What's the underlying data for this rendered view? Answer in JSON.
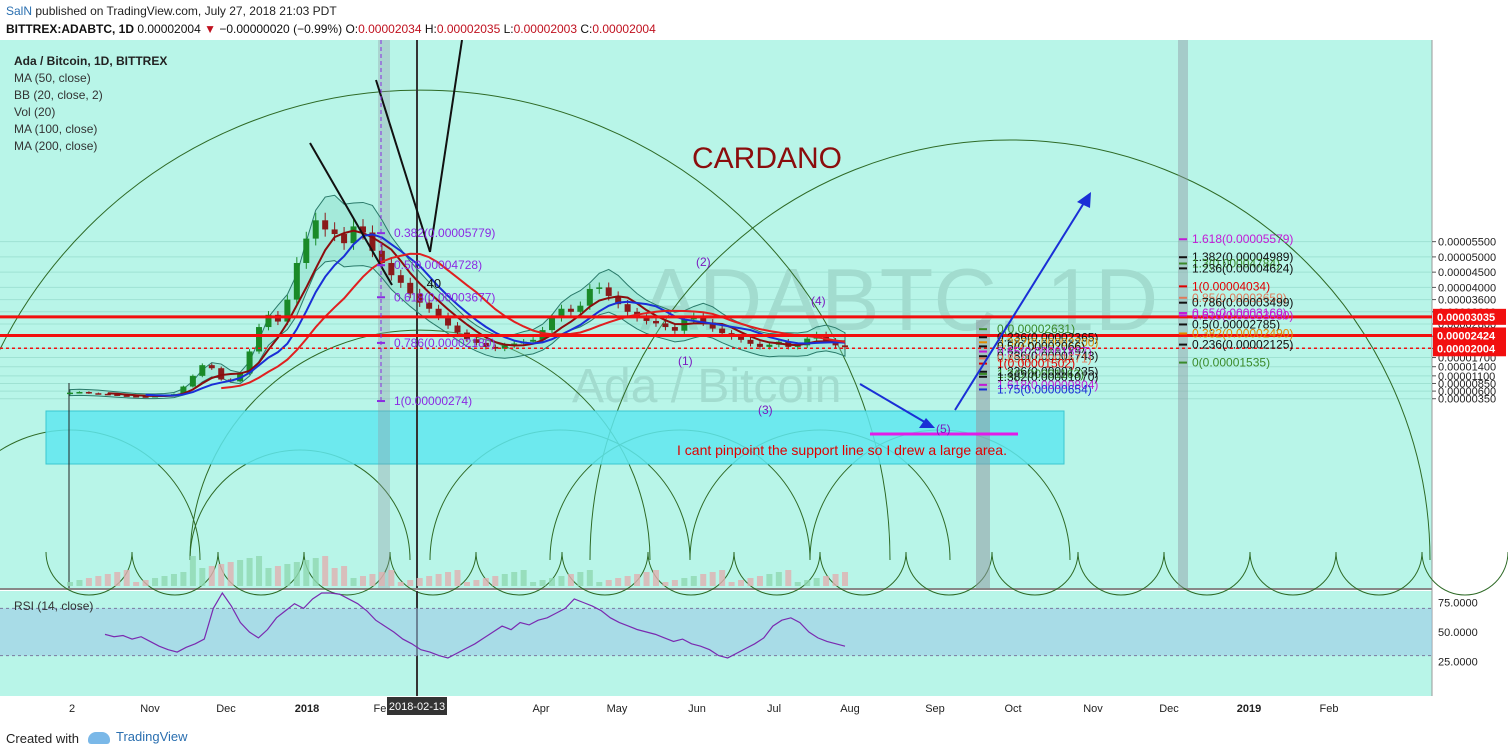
{
  "header": {
    "user": "SalN",
    "published_text": "published on TradingView.com, July 27, 2018 21:03 PDT",
    "symbol": "BITTREX:ADABTC, 1D",
    "last": "0.00002004",
    "change": "−0.00000020 (−0.99%)",
    "o_label": "O:",
    "o": "0.00002034",
    "h_label": "H:",
    "h": "0.00002035",
    "l_label": "L:",
    "l": "0.00002003",
    "c_label": "C:",
    "c": "0.00002004"
  },
  "legend": {
    "title": "Ada / Bitcoin, 1D, BITTREX",
    "items": [
      "MA (50, close)",
      "BB (20, close, 2)",
      "Vol (20)",
      "MA (100, close)",
      "MA (200, close)"
    ]
  },
  "watermark": {
    "line1": "ADABTC, 1D",
    "line2": "Ada / Bitcoin"
  },
  "annotations": {
    "title": "CARDANO",
    "note": "I cant pinpoint the support line so I drew a large area.",
    "wave1": "(1)",
    "wave2": "(2)",
    "wave3": "(3)",
    "wave4": "(4)",
    "wave5": "(5)",
    "point40": ".40"
  },
  "colors": {
    "background": "#b8f5e8",
    "grid": "#8fd9c9",
    "candle_up": "#1a8a28",
    "candle_down": "#8a1a1a",
    "ma50": "#1a2fd6",
    "ma100": "#8b0d0d",
    "ma200": "#e02020",
    "bb": "#2a7a6a",
    "hline": "#f20f0f",
    "support": "#7fe8f0",
    "fib_left": "#8b2be2",
    "arcs": "#2a6a20"
  },
  "rsi": {
    "label": "RSI (14, close)",
    "ticks": [
      "75.0000",
      "50.0000",
      "25.0000"
    ],
    "upper": 70,
    "lower": 30
  },
  "footer": {
    "created": "Created with",
    "brand": "TradingView"
  },
  "chart_data": {
    "type": "candlestick",
    "y_axis_ticks": [
      "0.00005500",
      "0.00005000",
      "0.00004500",
      "0.00004000",
      "0.00003600",
      "0.00003200",
      "0.00002800",
      "0.00002400",
      "0.00002000",
      "0.00001700",
      "0.00001400",
      "0.00001100",
      "0.00000850",
      "0.00000600",
      "0.00000350"
    ],
    "x_axis_ticks": [
      "2",
      "Nov",
      "Dec",
      "2018",
      "Feb",
      "2018-02-13",
      "Apr",
      "May",
      "Jun",
      "Jul",
      "Aug",
      "Sep",
      "Oct",
      "Nov",
      "Dec",
      "2019",
      "Feb"
    ],
    "price_badges": [
      "0.00003035",
      "0.00002424",
      "0.00002004"
    ],
    "horizontal_lines": [
      3.035e-05,
      2.424e-05,
      2.004e-05
    ],
    "close_series": [
      5.5e-06,
      5.7e-06,
      5.3e-06,
      5.1e-06,
      4.9e-06,
      4.6e-06,
      4.4e-06,
      4.3e-06,
      4.2e-06,
      4.4e-06,
      4.7e-06,
      5e-06,
      7.5e-06,
      1.1e-05,
      1.45e-05,
      1.35e-05,
      9.8e-06,
      9.2e-06,
      1.18e-05,
      1.9e-05,
      2.7e-05,
      3.1e-05,
      2.88e-05,
      3.6e-05,
      4.8e-05,
      5.6e-05,
      6.2e-05,
      5.9e-05,
      5.75e-05,
      5.45e-05,
      6e-05,
      5.8e-05,
      5.2e-05,
      4.8e-05,
      4.4e-05,
      4.15e-05,
      3.8e-05,
      3.5e-05,
      3.3e-05,
      3.05e-05,
      2.75e-05,
      2.52e-05,
      2.3e-05,
      2.18e-05,
      2.05e-05,
      1.99e-05,
      2.1e-05,
      2.16e-05,
      2.22e-05,
      2.28e-05,
      2.6e-05,
      3e-05,
      3.3e-05,
      3.2e-05,
      3.4e-05,
      3.95e-05,
      4e-05,
      3.72e-05,
      3.45e-05,
      3.2e-05,
      3e-05,
      2.9e-05,
      2.82e-05,
      2.7e-05,
      2.58e-05,
      2.95e-05,
      3.05e-05,
      2.85e-05,
      2.65e-05,
      2.5e-05,
      2.38e-05,
      2.28e-05,
      2.15e-05,
      2.05e-05,
      2.12e-05,
      2.22e-05,
      2.05e-05,
      2.1e-05,
      2.32e-05,
      2.45e-05,
      2.25e-05,
      2.1e-05,
      2.04e-05
    ],
    "fib_left": [
      {
        "label": "0.382(0.00005779)",
        "value": 5.779e-05
      },
      {
        "label": "0.5(0.00004728)",
        "value": 4.728e-05
      },
      {
        "label": "0.618(0.00003677)",
        "value": 3.677e-05
      },
      {
        "label": "0.786(0.00002180)",
        "value": 2.18e-05
      },
      {
        "label": "1(0.00000274)",
        "value": 2.74e-06
      }
    ],
    "fib_middle": [
      {
        "label": "0(0.00002631)",
        "value": 2.631e-05,
        "color": "#3a8a2a"
      },
      {
        "label": "0.236(0.00002365)",
        "value": 2.365e-05,
        "color": "#111111"
      },
      {
        "label": "0.382(0.00002200)",
        "value": 2.2e-05,
        "color": "#e08a00"
      },
      {
        "label": "0.5(0.00002066)",
        "value": 2.066e-05,
        "color": "#111111"
      },
      {
        "label": "0.65(0.00001897)",
        "value": 1.897e-05,
        "color": "#c21ad6"
      },
      {
        "label": "0.786(0.00001743)",
        "value": 1.743e-05,
        "color": "#111111"
      },
      {
        "label": "0.85(0.00001671)",
        "value": 1.671e-05,
        "color": "#e07a5a"
      },
      {
        "label": "1(0.00001502)",
        "value": 1.502e-05,
        "color": "#e00000"
      },
      {
        "label": "1.236(0.00001235)",
        "value": 1.235e-05,
        "color": "#111111"
      },
      {
        "label": "1.3(0.00001163)",
        "value": 1.163e-05,
        "color": "#3a8a2a"
      },
      {
        "label": "1.382(0.00001070)",
        "value": 1.07e-05,
        "color": "#111111"
      },
      {
        "label": "1.618(0.00000804)",
        "value": 8.04e-06,
        "color": "#c21ad6"
      },
      {
        "label": "1.75(0.00000654)",
        "value": 6.54e-06,
        "color": "#1a2fd6"
      }
    ],
    "fib_right": [
      {
        "label": "1.618(0.00005579)",
        "value": 5.579e-05,
        "color": "#c21ad6"
      },
      {
        "label": "1.382(0.00004989)",
        "value": 4.989e-05,
        "color": "#111111"
      },
      {
        "label": "1.3(0.00004784)",
        "value": 4.784e-05,
        "color": "#3a8a2a"
      },
      {
        "label": "1.236(0.00004624)",
        "value": 4.624e-05,
        "color": "#111111"
      },
      {
        "label": "1(0.00004034)",
        "value": 4.034e-05,
        "color": "#e00000"
      },
      {
        "label": "0.85(0.00003659)",
        "value": 3.659e-05,
        "color": "#e07a5a"
      },
      {
        "label": "0.786(0.00003499)",
        "value": 3.499e-05,
        "color": "#111111"
      },
      {
        "label": "0.65(0.00003160)",
        "value": 3.16e-05,
        "color": "#c21ad6"
      },
      {
        "label": "0.618(0.00003080)",
        "value": 3.08e-05,
        "color": "#c21ad6"
      },
      {
        "label": "0.5(0.00002785)",
        "value": 2.785e-05,
        "color": "#111111"
      },
      {
        "label": "0.382(0.00002490)",
        "value": 2.49e-05,
        "color": "#e08a00"
      },
      {
        "label": "0.236(0.00002125)",
        "value": 2.125e-05,
        "color": "#111111"
      },
      {
        "label": "0(0.00001535)",
        "value": 1.535e-05,
        "color": "#3a8a2a"
      }
    ],
    "rsi_series": [
      48,
      46,
      47,
      44,
      46,
      42,
      38,
      35,
      33,
      37,
      40,
      44,
      70,
      86,
      72,
      58,
      50,
      45,
      52,
      62,
      68,
      74,
      70,
      78,
      86,
      88,
      82,
      78,
      74,
      68,
      60,
      55,
      50,
      44,
      40,
      35,
      33,
      30,
      28,
      32,
      36,
      40,
      45,
      50,
      55,
      52,
      58,
      56,
      60,
      62,
      66,
      70,
      78,
      75,
      72,
      68,
      62,
      58,
      55,
      52,
      50,
      48,
      45,
      42,
      44,
      40,
      38,
      35,
      30,
      28,
      32,
      36,
      40,
      45,
      55,
      60,
      62,
      58,
      50,
      45,
      42,
      40,
      38
    ]
  }
}
